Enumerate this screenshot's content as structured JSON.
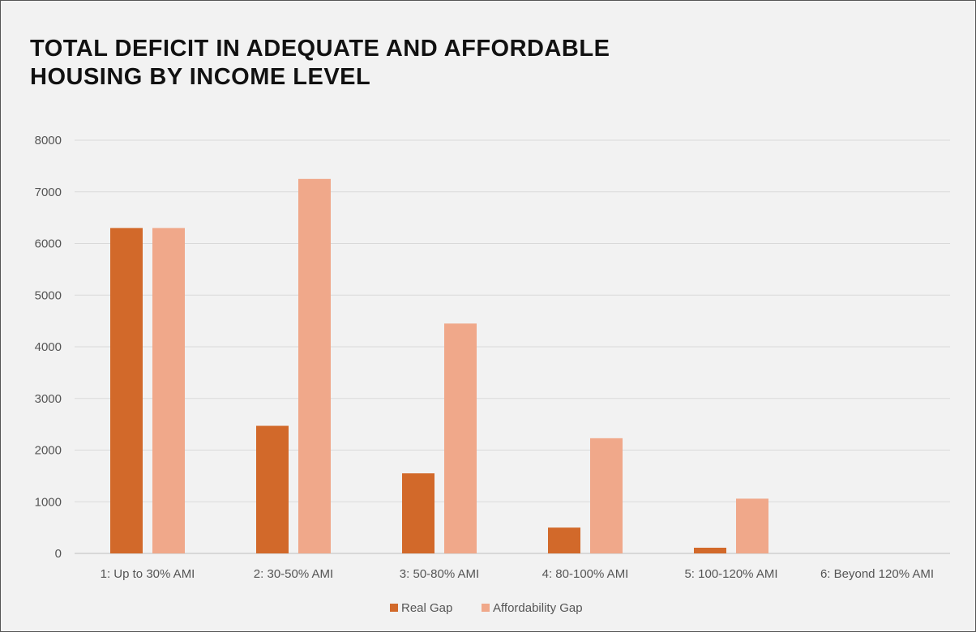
{
  "header": {
    "title_line1": "TOTAL DEFICIT IN ADEQUATE AND AFFORDABLE",
    "title_line2": "HOUSING BY INCOME LEVEL"
  },
  "chart_data": {
    "type": "bar",
    "title": "TOTAL DEFICIT IN ADEQUATE AND AFFORDABLE HOUSING BY INCOME LEVEL",
    "xlabel": "",
    "ylabel": "",
    "categories": [
      "1: Up to 30% AMI",
      "2: 30-50% AMI",
      "3: 50-80% AMI",
      "4: 80-100% AMI",
      "5: 100-120% AMI",
      "6: Beyond 120% AMI"
    ],
    "series": [
      {
        "name": "Real Gap",
        "color": "#d2692a",
        "values": [
          6300,
          2470,
          1550,
          500,
          110,
          0
        ]
      },
      {
        "name": "Affordability Gap",
        "color": "#f0a88a",
        "values": [
          6300,
          7250,
          4450,
          2230,
          1060,
          0
        ]
      }
    ],
    "ylim": [
      0,
      8000
    ],
    "yticks": [
      0,
      1000,
      2000,
      3000,
      4000,
      5000,
      6000,
      7000,
      8000
    ],
    "grid": true,
    "legend": "bottom"
  }
}
